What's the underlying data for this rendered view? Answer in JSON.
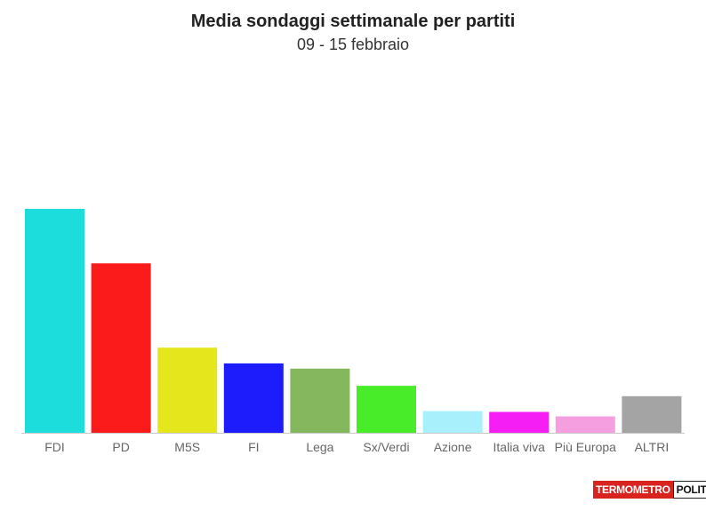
{
  "header": {
    "title": "Media sondaggi settimanale per partiti",
    "subtitle": "09 - 15 febbraio"
  },
  "logo": {
    "part1": "TERMOMETRO",
    "part2": "POLITICO"
  },
  "chart_data": {
    "type": "bar",
    "categories": [
      "FDI",
      "PD",
      "M5S",
      "FI",
      "Lega",
      "Sx/Verdi",
      "Azione",
      "Italia viva",
      "Più Europa",
      "ALTRI"
    ],
    "values": [
      30.0,
      22.7,
      11.4,
      9.3,
      8.6,
      6.3,
      2.9,
      2.8,
      2.2,
      4.9
    ],
    "colors": [
      "#1ddcdc",
      "#fc1b1b",
      "#e6e61c",
      "#1c1cfc",
      "#84b75e",
      "#48ec28",
      "#a8f0fc",
      "#f51ef5",
      "#f59ee0",
      "#a4a4a4"
    ],
    "ylim": [
      0,
      50
    ],
    "grid": false,
    "legend": "none"
  }
}
